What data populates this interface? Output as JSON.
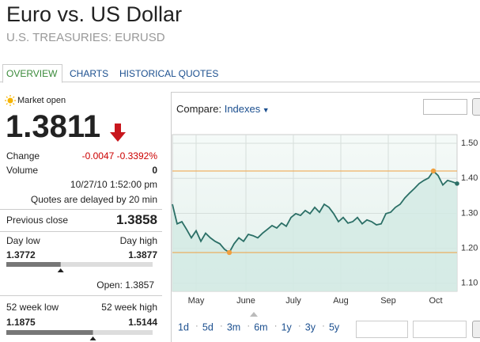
{
  "header": {
    "title": "Euro vs. US Dollar",
    "subtitle": "U.S. TREASURIES: EURUSD"
  },
  "tabs": [
    "OVERVIEW",
    "CHARTS",
    "HISTORICAL QUOTES"
  ],
  "quote": {
    "status": "Market open",
    "price": "1.3811",
    "change_label": "Change",
    "change": "-0.0047 -0.3392%",
    "volume_label": "Volume",
    "volume": "0",
    "timestamp": "10/27/10 1:52:00 pm",
    "delay_note": "Quotes are delayed by 20 min",
    "previous_close_label": "Previous close",
    "previous_close": "1.3858",
    "day_low_label": "Day low",
    "day_high_label": "Day high",
    "day_low": "1.3772",
    "day_high": "1.3877",
    "open_label": "Open:",
    "open": "1.3857",
    "week52_low_label": "52 week low",
    "week52_high_label": "52 week high",
    "week52_low": "1.1875",
    "week52_high": "1.5144"
  },
  "chart": {
    "type": "line",
    "compare_label": "Compare:",
    "compare_menu": "Indexes",
    "color": "#2b6f66",
    "fill": "#d2eae3",
    "marker_color": "#f0a040",
    "values": [
      1.326,
      1.27,
      1.276,
      1.254,
      1.23,
      1.25,
      1.22,
      1.243,
      1.23,
      1.22,
      1.213,
      1.197,
      1.188,
      1.213,
      1.23,
      1.22,
      1.24,
      1.236,
      1.23,
      1.243,
      1.254,
      1.265,
      1.258,
      1.272,
      1.263,
      1.288,
      1.299,
      1.294,
      1.308,
      1.299,
      1.317,
      1.303,
      1.326,
      1.317,
      1.299,
      1.276,
      1.288,
      1.272,
      1.276,
      1.288,
      1.27,
      1.281,
      1.276,
      1.267,
      1.27,
      1.299,
      1.303,
      1.317,
      1.326,
      1.344,
      1.358,
      1.371,
      1.385,
      1.394,
      1.401,
      1.421,
      1.408,
      1.381,
      1.394,
      1.39,
      1.385
    ],
    "xlim": [
      0,
      60
    ],
    "xticks": [
      {
        "value": 5,
        "label": "May"
      },
      {
        "value": 15.5,
        "label": "June"
      },
      {
        "value": 25.5,
        "label": "July"
      },
      {
        "value": 35.5,
        "label": "Aug"
      },
      {
        "value": 45.5,
        "label": "Sep"
      },
      {
        "value": 55.5,
        "label": "Oct"
      }
    ],
    "ylim": [
      1.077,
      1.525
    ],
    "yticks": [
      {
        "value": 1.5,
        "label": "1.50"
      },
      {
        "value": 1.4,
        "label": "1.40"
      },
      {
        "value": 1.3,
        "label": "1.30"
      },
      {
        "value": 1.2,
        "label": "1.20"
      },
      {
        "value": 1.1,
        "label": "1.10"
      }
    ],
    "grid": true,
    "ranges": [
      "1d",
      "5d",
      "3m",
      "6m",
      "1y",
      "3y",
      "5y"
    ]
  }
}
